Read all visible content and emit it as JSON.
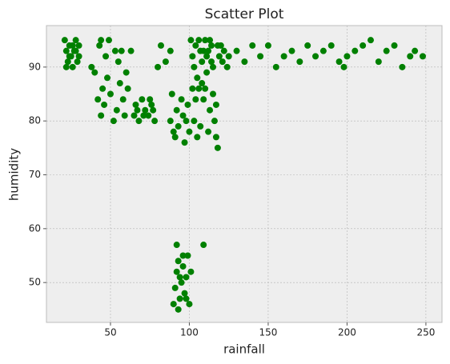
{
  "chart_data": {
    "type": "scatter",
    "title": "Scatter Plot",
    "x_label": "rainfall",
    "y_label": "humidity",
    "color": "#008000",
    "grid": true,
    "xlim": [
      9.4,
      260.2
    ],
    "ylim": [
      42.6,
      97.7
    ],
    "xticks": [
      50,
      100,
      150,
      200,
      250
    ],
    "yticks": [
      50,
      60,
      70,
      80,
      90
    ],
    "x": [
      21,
      22,
      23,
      24,
      25,
      26,
      27,
      28,
      29,
      30,
      22,
      24,
      26,
      28,
      30,
      40,
      42,
      44,
      45,
      46,
      48,
      50,
      52,
      54,
      55,
      56,
      58,
      60,
      47,
      53,
      59,
      43,
      49,
      57,
      61,
      65,
      66,
      68,
      70,
      72,
      74,
      76,
      78,
      67,
      71,
      75,
      77,
      88,
      89,
      90,
      91,
      92,
      93,
      95,
      96,
      97,
      99,
      100,
      98,
      101,
      102,
      103,
      104,
      105,
      106,
      107,
      108,
      109,
      110,
      111,
      112,
      113,
      114,
      115,
      116,
      117,
      118,
      119,
      120,
      121,
      122,
      124,
      125,
      103,
      105,
      107,
      110,
      112,
      115,
      117,
      104,
      108,
      111,
      113,
      106,
      109,
      114,
      118,
      102,
      90,
      91,
      92,
      93,
      94,
      95,
      96,
      97,
      98,
      99,
      100,
      101,
      92,
      109,
      93,
      96,
      98,
      94,
      130,
      135,
      140,
      145,
      150,
      155,
      160,
      165,
      170,
      175,
      180,
      185,
      190,
      195,
      198,
      200,
      205,
      210,
      215,
      220,
      225,
      230,
      235,
      240,
      243,
      248,
      82,
      85,
      88,
      80,
      44,
      63,
      38
    ],
    "values": [
      95,
      93,
      91,
      94,
      92,
      90,
      93,
      95,
      91,
      92,
      90,
      92,
      94,
      93,
      94,
      89,
      84,
      81,
      86,
      83,
      88,
      85,
      80,
      82,
      91,
      87,
      84,
      89,
      92,
      93,
      81,
      94,
      95,
      93,
      86,
      81,
      83,
      80,
      84,
      82,
      81,
      83,
      80,
      82,
      81,
      84,
      82,
      80,
      85,
      78,
      77,
      82,
      79,
      84,
      81,
      76,
      83,
      78,
      80,
      95,
      92,
      90,
      94,
      88,
      86,
      93,
      91,
      84,
      95,
      89,
      93,
      82,
      94,
      90,
      80,
      77,
      75,
      92,
      94,
      91,
      93,
      90,
      92,
      80,
      77,
      79,
      86,
      78,
      85,
      83,
      84,
      87,
      92,
      95,
      95,
      93,
      91,
      94,
      86,
      46,
      49,
      52,
      54,
      47,
      50,
      53,
      48,
      51,
      55,
      46,
      52,
      57,
      57,
      45,
      55,
      47,
      51,
      93,
      91,
      94,
      92,
      94,
      90,
      92,
      93,
      91,
      94,
      92,
      93,
      94,
      91,
      90,
      92,
      93,
      94,
      95,
      91,
      93,
      94,
      90,
      92,
      93,
      92,
      94,
      91,
      93,
      90,
      95,
      93,
      90
    ]
  }
}
